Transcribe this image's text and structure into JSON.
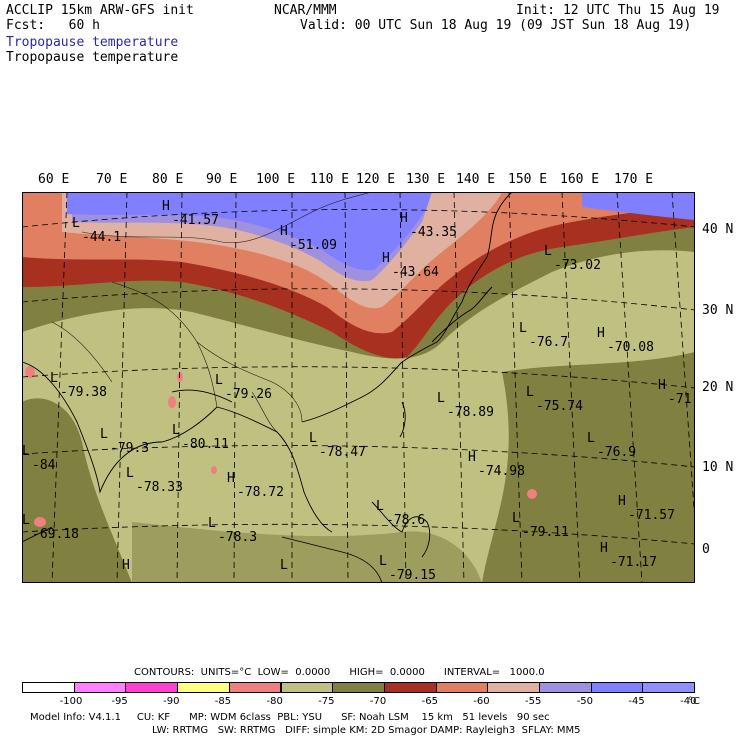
{
  "header": {
    "left_line1": "ACCLIP 15km ARW-GFS init",
    "left_line2": "Fcst:   60 h",
    "center": "NCAR/MMM",
    "init": "Init: 12 UTC Thu 15 Aug 19",
    "valid": "Valid: 00 UTC Sun 18 Aug 19 (09 JST Sun 18 Aug 19)",
    "field_title_1": "Tropopause temperature",
    "field_title_2": "Tropopause temperature"
  },
  "map": {
    "lon_labels": [
      "60 E",
      "70 E",
      "80 E",
      "90 E",
      "100 E",
      "110 E",
      "120 E",
      "130 E",
      "140 E",
      "150 E",
      "160 E",
      "170 E"
    ],
    "lat_labels": [
      "40 N",
      "30 N",
      "20 N",
      "10 N",
      "0"
    ],
    "fill_colors": {
      "c100": "#ffffff",
      "c95": "#ff80ff",
      "c90": "#ff40d0",
      "c85": "#ffff80",
      "c80": "#f08080",
      "c75": "#c0c080",
      "c70": "#808040",
      "c65": "#a83020",
      "c60": "#e08060",
      "c55": "#e0b0a0",
      "c50": "#a090e0",
      "c45": "#8080ff",
      "c40": "#9090ff"
    },
    "extrema": [
      {
        "kind": "H",
        "value": "-41.57"
      },
      {
        "kind": "L",
        "value": "-44.1"
      },
      {
        "kind": "H",
        "value": "-51.09"
      },
      {
        "kind": "H",
        "value": "-43.35"
      },
      {
        "kind": "H",
        "value": "-43.64"
      },
      {
        "kind": "L",
        "value": "-73.02"
      },
      {
        "kind": "L",
        "value": "-76.7"
      },
      {
        "kind": "H",
        "value": "-70.08"
      },
      {
        "kind": "H",
        "value": "-71."
      },
      {
        "kind": "L",
        "value": "-79.38"
      },
      {
        "kind": "L",
        "value": "-79.26"
      },
      {
        "kind": "L",
        "value": "-75.74"
      },
      {
        "kind": "L",
        "value": "-78.89"
      },
      {
        "kind": "L",
        "value": "-79.3"
      },
      {
        "kind": "L",
        "value": "-80.11"
      },
      {
        "kind": "L",
        "value": "-76.9"
      },
      {
        "kind": "L",
        "value": "-78.47"
      },
      {
        "kind": "H",
        "value": "-74.98"
      },
      {
        "kind": "L",
        "value": "-84"
      },
      {
        "kind": "L",
        "value": "-78.33"
      },
      {
        "kind": "H",
        "value": "-78.72"
      },
      {
        "kind": "H",
        "value": "-71.57"
      },
      {
        "kind": "L",
        "value": "-69.18"
      },
      {
        "kind": "L",
        "value": "-78.3"
      },
      {
        "kind": "L",
        "value": "-78.6"
      },
      {
        "kind": "L",
        "value": "-79.11"
      },
      {
        "kind": "H",
        "value": "-71.17"
      },
      {
        "kind": "L",
        "value": "-79.15"
      },
      {
        "kind": "H",
        "value": ""
      },
      {
        "kind": "L",
        "value": ""
      }
    ]
  },
  "contours_line": "CONTOURS:  UNITS=°C  LOW=  0.0000      HIGH=  0.0000      INTERVAL=   1000.0",
  "colorbar": {
    "colors": [
      "#ffffff",
      "#ff80ff",
      "#ff40d0",
      "#ffff80",
      "#f08080",
      "#c0c080",
      "#808040",
      "#a83020",
      "#e08060",
      "#e0b0a0",
      "#a090e0",
      "#8080ff",
      "#9090ff"
    ],
    "labels": [
      "-100",
      "-95",
      "-90",
      "-85",
      "-80",
      "-75",
      "-70",
      "-65",
      "-60",
      "-55",
      "-50",
      "-45",
      "-40"
    ],
    "unit": "°C"
  },
  "model_info_1": "Model Info: V4.1.1     CU: KF      MP: WDM 6class  PBL: YSU      SF: Noah LSM    15 km   51 levels   90 sec",
  "model_info_2": "LW: RRTMG   SW: RRTMG   DIFF: simple KM: 2D Smagor DAMP: Rayleigh3  SFLAY: MM5"
}
